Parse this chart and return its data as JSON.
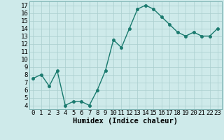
{
  "x": [
    0,
    1,
    2,
    3,
    4,
    5,
    6,
    7,
    8,
    9,
    10,
    11,
    12,
    13,
    14,
    15,
    16,
    17,
    18,
    19,
    20,
    21,
    22,
    23
  ],
  "y": [
    7.5,
    8.0,
    6.5,
    8.5,
    4.0,
    4.5,
    4.5,
    4.0,
    6.0,
    8.5,
    12.5,
    11.5,
    14.0,
    16.5,
    17.0,
    16.5,
    15.5,
    14.5,
    13.5,
    13.0,
    13.5,
    13.0,
    13.0,
    14.0
  ],
  "xlabel": "Humidex (Indice chaleur)",
  "xlim": [
    -0.5,
    23.5
  ],
  "ylim": [
    3.5,
    17.5
  ],
  "yticks": [
    4,
    5,
    6,
    7,
    8,
    9,
    10,
    11,
    12,
    13,
    14,
    15,
    16,
    17
  ],
  "xticks": [
    0,
    1,
    2,
    3,
    4,
    5,
    6,
    7,
    8,
    9,
    10,
    11,
    12,
    13,
    14,
    15,
    16,
    17,
    18,
    19,
    20,
    21,
    22,
    23
  ],
  "line_color": "#1a7a6e",
  "marker_color": "#1a7a6e",
  "bg_color": "#ceeaea",
  "grid_color": "#aacece",
  "tick_label_fontsize": 6.5,
  "xlabel_fontsize": 7.5,
  "line_width": 1.0,
  "marker_size": 2.5
}
